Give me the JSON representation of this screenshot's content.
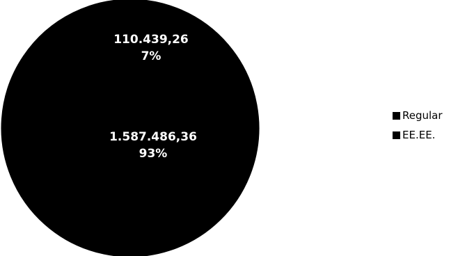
{
  "chart_data": {
    "type": "pie",
    "title": "",
    "series": [
      {
        "values": [
          1587486.36,
          110439.26
        ]
      }
    ],
    "slices": [
      {
        "name": "Regular",
        "value": 1587486.36,
        "value_label": "1.587.486,36",
        "percent_label": "93%",
        "color": "#000000"
      },
      {
        "name": "EE.EE.",
        "value": 110439.26,
        "value_label": "110.439,26",
        "percent_label": "7%",
        "color": "#000000"
      }
    ],
    "label_color": "#ffffff",
    "slice_border_color": "#000000",
    "legend": {
      "placement": "right",
      "items": [
        "Regular",
        "EE.EE."
      ]
    }
  }
}
